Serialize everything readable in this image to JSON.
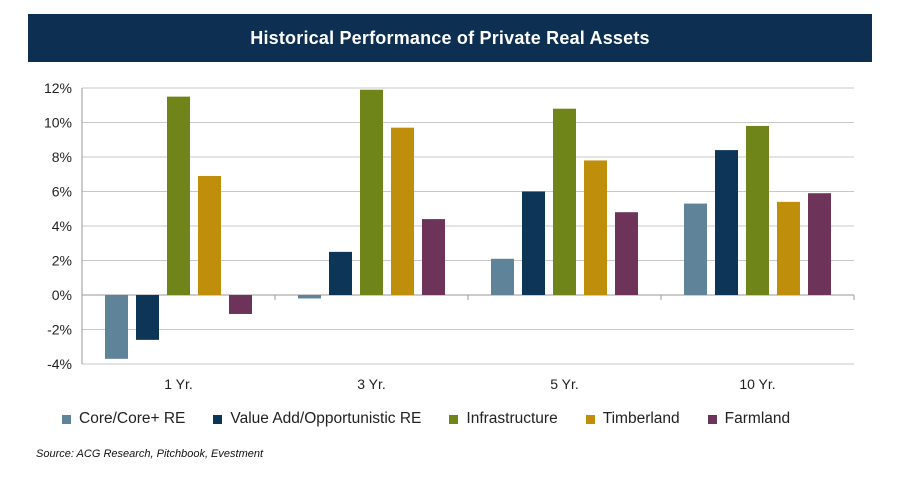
{
  "chart_data": {
    "type": "bar",
    "title": "Historical Performance of Private Real Assets",
    "categories": [
      "1 Yr.",
      "3 Yr.",
      "5 Yr.",
      "10 Yr."
    ],
    "series": [
      {
        "name": "Core/Core+ RE",
        "color": "#5f8399",
        "values": [
          -3.7,
          -0.2,
          2.1,
          5.3
        ]
      },
      {
        "name": "Value Add/Opportunistic RE",
        "color": "#0d3558",
        "values": [
          -2.6,
          2.5,
          6.0,
          8.4
        ]
      },
      {
        "name": "Infrastructure",
        "color": "#708519",
        "values": [
          11.5,
          11.9,
          10.8,
          9.8
        ]
      },
      {
        "name": "Timberland",
        "color": "#bf8e0a",
        "values": [
          6.9,
          9.7,
          7.8,
          5.4
        ]
      },
      {
        "name": "Farmland",
        "color": "#6e3359",
        "values": [
          -1.1,
          4.4,
          4.8,
          5.9
        ]
      }
    ],
    "ylim": [
      -4,
      12
    ],
    "yticks": [
      -4,
      -2,
      0,
      2,
      4,
      6,
      8,
      10,
      12
    ],
    "ytick_labels": [
      "-4%",
      "-2%",
      "0%",
      "2%",
      "4%",
      "6%",
      "8%",
      "10%",
      "12%"
    ],
    "grid": true,
    "legend": "bottom"
  },
  "source": "Source: ACG Research, Pitchbook, Evestment"
}
